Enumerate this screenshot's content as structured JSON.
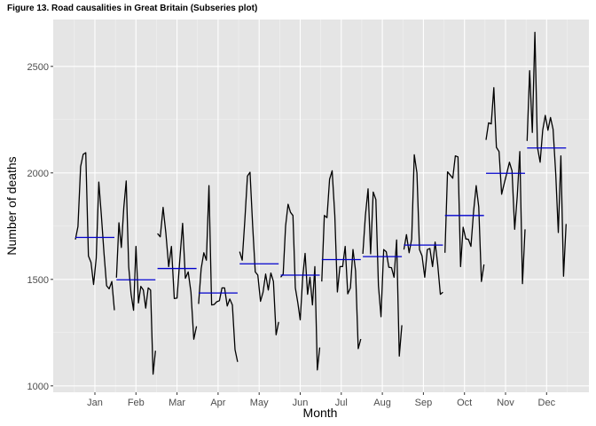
{
  "chart_data": {
    "type": "line",
    "title": "Figure 13. Road causalities in Great Britain (Subseries plot)",
    "xlabel": "Month",
    "ylabel": "Number of deaths",
    "ylim": [
      970,
      2720
    ],
    "yticks": [
      1000,
      1500,
      2000,
      2500
    ],
    "grid": true,
    "background": "#e5e5e5",
    "line_color": "#000000",
    "mean_color": "#0000cc",
    "months": [
      {
        "label": "Jan",
        "mean": 1697,
        "values": [
          1687,
          1748,
          2030,
          2087,
          2095,
          1610,
          1580,
          1476,
          1600,
          1957,
          1800,
          1621,
          1470,
          1456,
          1490,
          1355
        ]
      },
      {
        "label": "Feb",
        "mean": 1498,
        "values": [
          1508,
          1766,
          1650,
          1838,
          1962,
          1560,
          1431,
          1355,
          1655,
          1389,
          1467,
          1450,
          1365,
          1460,
          1450,
          1055,
          1165
        ]
      },
      {
        "label": "Mar",
        "mean": 1551,
        "values": [
          1715,
          1700,
          1838,
          1718,
          1560,
          1655,
          1410,
          1412,
          1590,
          1763,
          1505,
          1535,
          1440,
          1219,
          1280
        ]
      },
      {
        "label": "Apr",
        "mean": 1436,
        "values": [
          1385,
          1550,
          1625,
          1590,
          1940,
          1380,
          1382,
          1395,
          1400,
          1460,
          1460,
          1375,
          1408,
          1380,
          1170,
          1113
        ]
      },
      {
        "label": "May",
        "mean": 1573,
        "values": [
          1630,
          1590,
          1780,
          1985,
          2003,
          1750,
          1535,
          1520,
          1397,
          1440,
          1525,
          1450,
          1530,
          1490,
          1240,
          1300
        ]
      },
      {
        "label": "Jun",
        "mean": 1520,
        "values": [
          1510,
          1525,
          1750,
          1853,
          1815,
          1800,
          1460,
          1390,
          1310,
          1510,
          1622,
          1430,
          1510,
          1380,
          1560,
          1075,
          1180
        ]
      },
      {
        "label": "Jul",
        "mean": 1593,
        "values": [
          1490,
          1800,
          1790,
          1970,
          2010,
          1800,
          1441,
          1560,
          1560,
          1655,
          1432,
          1460,
          1640,
          1540,
          1175,
          1220
        ]
      },
      {
        "label": "Aug",
        "mean": 1607,
        "values": [
          1620,
          1800,
          1925,
          1620,
          1910,
          1875,
          1470,
          1325,
          1640,
          1630,
          1557,
          1555,
          1510,
          1685,
          1140,
          1285
        ]
      },
      {
        "label": "Sep",
        "mean": 1661,
        "values": [
          1640,
          1710,
          1625,
          1690,
          2085,
          2000,
          1640,
          1610,
          1510,
          1640,
          1645,
          1560,
          1675,
          1570,
          1430,
          1440
        ]
      },
      {
        "label": "Oct",
        "mean": 1800,
        "values": [
          1625,
          2005,
          1990,
          1975,
          2080,
          2075,
          1560,
          1745,
          1690,
          1688,
          1655,
          1820,
          1940,
          1840,
          1490,
          1570
        ]
      },
      {
        "label": "Nov",
        "mean": 1998,
        "values": [
          2155,
          2235,
          2230,
          2400,
          2120,
          2100,
          1900,
          1950,
          2000,
          2050,
          2010,
          1735,
          1890,
          2100,
          1480,
          1735
        ]
      },
      {
        "label": "Dec",
        "mean": 2117,
        "values": [
          2150,
          2480,
          2190,
          2660,
          2120,
          2050,
          2200,
          2270,
          2200,
          2260,
          2205,
          1995,
          1720,
          2080,
          1515,
          1760
        ]
      }
    ]
  }
}
